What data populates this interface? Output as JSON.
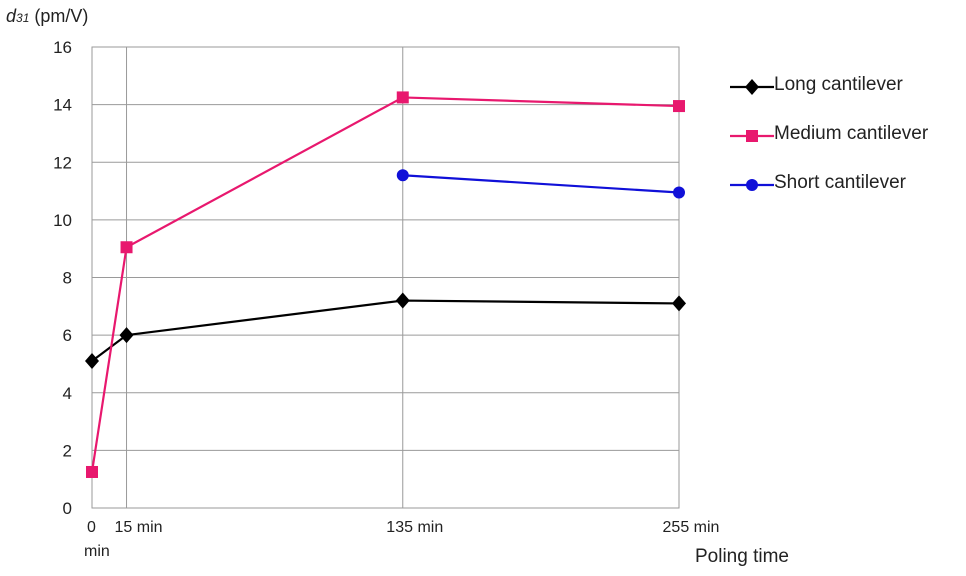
{
  "chart_data": {
    "type": "line",
    "ylabel_symbol": "d",
    "ylabel_subscript": "31",
    "ylabel_unit": " (pm/V)",
    "xlabel": "Poling time",
    "ylim": [
      0,
      16
    ],
    "yticks": [
      0,
      2,
      4,
      6,
      8,
      10,
      12,
      14,
      16
    ],
    "grid": true,
    "legend_position": "right",
    "x": [
      0,
      15,
      135,
      255
    ],
    "x_tick_labels": [
      {
        "value": 0,
        "lines": [
          "0",
          "min"
        ]
      },
      {
        "value": 15,
        "lines": [
          "15 min"
        ]
      },
      {
        "value": 135,
        "lines": [
          "135 min"
        ]
      },
      {
        "value": 255,
        "lines": [
          "255 min"
        ]
      }
    ],
    "series": [
      {
        "name": "Long cantilever",
        "color": "#000000",
        "marker": "diamond",
        "points": [
          [
            0,
            5.1
          ],
          [
            15,
            6.0
          ],
          [
            135,
            7.2
          ],
          [
            255,
            7.1
          ]
        ]
      },
      {
        "name": "Medium cantilever",
        "color": "#e8186e",
        "marker": "square",
        "points": [
          [
            0,
            1.25
          ],
          [
            15,
            9.05
          ],
          [
            135,
            14.25
          ],
          [
            255,
            13.95
          ]
        ]
      },
      {
        "name": "Short cantilever",
        "color": "#1010d8",
        "marker": "circle",
        "points": [
          [
            135,
            11.55
          ],
          [
            255,
            10.95
          ]
        ]
      }
    ]
  }
}
